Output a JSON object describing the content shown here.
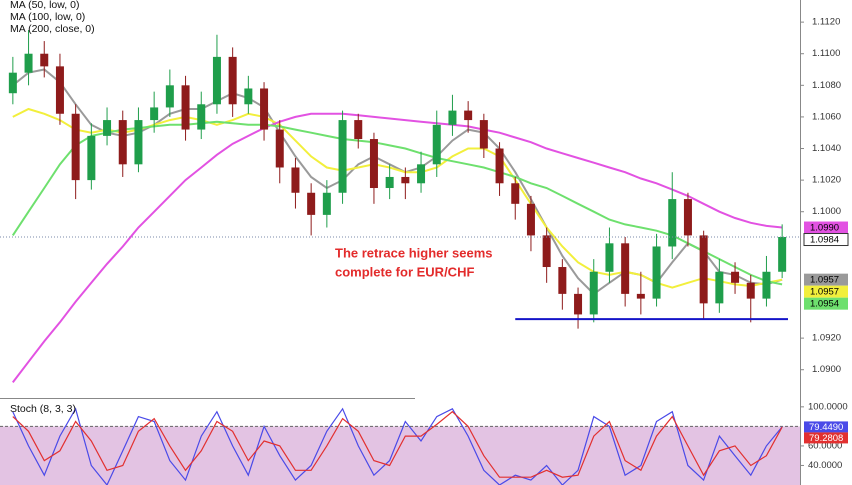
{
  "chart_data": [
    {
      "type": "candlestick",
      "legend": [
        "MA (50, low, 0)",
        "MA (100, low, 0)",
        "MA (200, close, 0)"
      ],
      "annotation_lines": [
        "The retrace higher seems",
        "complete for EUR/CHF"
      ],
      "up_color": "#1f9e4b",
      "down_color": "#8e1b1b",
      "open": [
        1.1075,
        1.1088,
        1.11,
        1.1092,
        1.1062,
        1.102,
        1.1048,
        1.1058,
        1.103,
        1.1058,
        1.1066,
        1.108,
        1.1052,
        1.1068,
        1.1098,
        1.1068,
        1.1078,
        1.1052,
        1.1028,
        1.1012,
        1.0998,
        1.1012,
        1.1058,
        1.1046,
        1.1015,
        1.1022,
        1.1018,
        1.103,
        1.1055,
        1.1064,
        1.1058,
        1.104,
        1.1018,
        1.1005,
        1.0985,
        1.0965,
        1.0948,
        1.0935,
        1.0962,
        1.098,
        1.0948,
        1.0945,
        1.0978,
        1.1008,
        1.0985,
        1.0942,
        1.0962,
        1.0955,
        1.0945,
        1.0962
      ],
      "high": [
        1.1098,
        1.1115,
        1.1108,
        1.11,
        1.1068,
        1.1056,
        1.1066,
        1.1064,
        1.1066,
        1.1076,
        1.109,
        1.1086,
        1.1076,
        1.1112,
        1.1104,
        1.1086,
        1.1082,
        1.1058,
        1.1034,
        1.1018,
        1.102,
        1.1064,
        1.1062,
        1.105,
        1.103,
        1.1028,
        1.1038,
        1.1064,
        1.1074,
        1.107,
        1.1062,
        1.1044,
        1.1022,
        1.101,
        1.099,
        1.097,
        1.0952,
        1.097,
        1.099,
        1.0984,
        1.0962,
        1.0986,
        1.1025,
        1.1012,
        1.0988,
        1.097,
        1.0968,
        1.096,
        1.0972,
        1.0992
      ],
      "low": [
        1.1068,
        1.108,
        1.1085,
        1.1055,
        1.1008,
        1.1014,
        1.1042,
        1.1022,
        1.1025,
        1.105,
        1.106,
        1.1045,
        1.1046,
        1.1062,
        1.106,
        1.1062,
        1.1045,
        1.1018,
        1.1002,
        1.0985,
        1.099,
        1.1005,
        1.104,
        1.1005,
        1.1008,
        1.1008,
        1.1012,
        1.1022,
        1.1048,
        1.105,
        1.1034,
        1.101,
        1.0995,
        1.0975,
        1.0955,
        1.0938,
        1.0926,
        1.093,
        1.0955,
        1.094,
        1.0935,
        1.094,
        1.097,
        1.0978,
        1.0932,
        1.0936,
        1.0948,
        1.093,
        1.094,
        1.0958
      ],
      "close": [
        1.1088,
        1.11,
        1.1092,
        1.1062,
        1.102,
        1.1048,
        1.1058,
        1.103,
        1.1058,
        1.1066,
        1.108,
        1.1052,
        1.1068,
        1.1098,
        1.1068,
        1.1078,
        1.1052,
        1.1028,
        1.1012,
        1.0998,
        1.1012,
        1.1058,
        1.1046,
        1.1015,
        1.1022,
        1.1018,
        1.103,
        1.1055,
        1.1064,
        1.1058,
        1.104,
        1.1018,
        1.1005,
        1.0985,
        1.0965,
        1.0948,
        1.0935,
        1.0962,
        1.098,
        1.0948,
        1.0945,
        1.0978,
        1.1008,
        1.0985,
        1.0942,
        1.0962,
        1.0955,
        1.0945,
        1.0962,
        1.0984
      ],
      "series": [
        {
          "color": "#9a9a9a",
          "values": [
            1.108,
            1.1088,
            1.109,
            1.1082,
            1.1068,
            1.1055,
            1.105,
            1.1048,
            1.105,
            1.1055,
            1.1062,
            1.1065,
            1.1065,
            1.107,
            1.1075,
            1.1072,
            1.1066,
            1.105,
            1.1035,
            1.1022,
            1.1015,
            1.102,
            1.103,
            1.1035,
            1.103,
            1.1025,
            1.1028,
            1.1035,
            1.1045,
            1.1052,
            1.105,
            1.104,
            1.1025,
            1.1008,
            1.099,
            1.0972,
            1.0958,
            1.0948,
            1.0955,
            1.0962,
            1.096,
            1.0955,
            1.0968,
            1.098,
            1.0975,
            1.0962,
            1.096,
            1.0955,
            1.0954,
            1.0957
          ]
        },
        {
          "color": "#f2ef3c",
          "values": [
            1.106,
            1.1065,
            1.1062,
            1.1058,
            1.1052,
            1.105,
            1.1052,
            1.105,
            1.1052,
            1.1055,
            1.1058,
            1.106,
            1.1058,
            1.1055,
            1.1058,
            1.1062,
            1.106,
            1.1055,
            1.1045,
            1.1035,
            1.1028,
            1.1026,
            1.1028,
            1.103,
            1.1028,
            1.1025,
            1.1025,
            1.1028,
            1.1035,
            1.104,
            1.104,
            1.1035,
            1.102,
            1.1005,
            1.099,
            1.0978,
            1.0968,
            1.0962,
            1.096,
            1.0962,
            1.096,
            1.0955,
            1.0952,
            1.0955,
            1.0958,
            1.0956,
            1.0954,
            1.0953,
            1.0955,
            1.0957
          ]
        },
        {
          "color": "#e252e2",
          "values": [
            1.0892,
            1.0905,
            1.0918,
            1.093,
            1.0943,
            1.0955,
            1.0967,
            1.0978,
            1.099,
            1.1,
            1.101,
            1.102,
            1.1028,
            1.1036,
            1.1043,
            1.1048,
            1.1053,
            1.1057,
            1.106,
            1.1062,
            1.1062,
            1.1062,
            1.1061,
            1.106,
            1.1059,
            1.1058,
            1.1057,
            1.1056,
            1.1055,
            1.1054,
            1.1052,
            1.105,
            1.1047,
            1.1044,
            1.104,
            1.1037,
            1.1034,
            1.1031,
            1.1028,
            1.1025,
            1.1021,
            1.1018,
            1.1014,
            1.101,
            1.1005,
            1.1,
            1.0996,
            1.0993,
            1.0991,
            1.099
          ]
        },
        {
          "color": "#6ee06e",
          "values": [
            1.0985,
            1.1,
            1.1015,
            1.103,
            1.1042,
            1.1048,
            1.105,
            1.1052,
            1.1053,
            1.1054,
            1.1055,
            1.1055,
            1.1056,
            1.1057,
            1.1056,
            1.1055,
            1.1055,
            1.1054,
            1.1052,
            1.105,
            1.1048,
            1.1046,
            1.1045,
            1.1044,
            1.1042,
            1.104,
            1.1037,
            1.1034,
            1.1032,
            1.103,
            1.1028,
            1.1025,
            1.1022,
            1.1018,
            1.1015,
            1.101,
            1.1005,
            1.1,
            1.0995,
            1.0992,
            1.099,
            1.0988,
            1.0985,
            1.098,
            1.0975,
            1.097,
            1.0965,
            1.096,
            1.0956,
            1.0954
          ]
        }
      ],
      "support_level": 1.0932,
      "support_color": "#1414c8",
      "price_labels": [
        {
          "value": 1.099,
          "label": "1.0990",
          "color": "#e252e2"
        },
        {
          "value": 1.0984,
          "label": "1.0984",
          "color": "#ffffff"
        },
        {
          "value": 1.0957,
          "label": "1.0957",
          "color": "#9a9a9a"
        },
        {
          "value": 1.0957,
          "label": "1.0957",
          "color": "#f2ef3c"
        },
        {
          "value": 1.0954,
          "label": "1.0954",
          "color": "#6ee06e"
        }
      ],
      "ylim": [
        1.0884,
        1.1134
      ],
      "yticks": [
        {
          "value": 1.09,
          "label": "1.0900"
        },
        {
          "value": 1.092,
          "label": "1.0920"
        },
        {
          "value": 1.1,
          "label": "1.1000"
        },
        {
          "value": 1.102,
          "label": "1.1020"
        },
        {
          "value": 1.104,
          "label": "1.1040"
        },
        {
          "value": 1.106,
          "label": "1.1060"
        },
        {
          "value": 1.108,
          "label": "1.1080"
        },
        {
          "value": 1.11,
          "label": "1.1100"
        },
        {
          "value": 1.112,
          "label": "1.1120"
        }
      ]
    },
    {
      "type": "line",
      "title": "Stoch (8, 3, 3)",
      "band": [
        20,
        80
      ],
      "band_color": "#dcb4dc",
      "series": [
        {
          "color": "#4a4ae8",
          "values": [
            95,
            60,
            30,
            70,
            98,
            40,
            20,
            55,
            90,
            85,
            45,
            25,
            70,
            95,
            60,
            30,
            80,
            50,
            25,
            40,
            75,
            98,
            60,
            30,
            45,
            85,
            65,
            90,
            98,
            70,
            35,
            20,
            30,
            25,
            40,
            20,
            35,
            90,
            80,
            30,
            40,
            85,
            95,
            40,
            25,
            70,
            50,
            30,
            60,
            79.449
          ]
        },
        {
          "color": "#e23030",
          "values": [
            90,
            75,
            45,
            55,
            85,
            65,
            35,
            40,
            75,
            88,
            60,
            35,
            55,
            85,
            75,
            45,
            65,
            60,
            35,
            35,
            60,
            88,
            75,
            45,
            40,
            70,
            70,
            82,
            95,
            80,
            50,
            28,
            28,
            28,
            35,
            28,
            30,
            70,
            85,
            45,
            35,
            70,
            90,
            60,
            30,
            55,
            60,
            40,
            50,
            79.2808
          ]
        }
      ],
      "value_labels": [
        {
          "value": 79.449,
          "label": "79.4490",
          "color": "#4a4ae8"
        },
        {
          "value": 79.2808,
          "label": "79.2808",
          "color": "#e23030"
        }
      ],
      "ylim": [
        20,
        107
      ],
      "yticks": [
        {
          "value": 100,
          "label": "100.0000"
        },
        {
          "value": 60,
          "label": "60.0000"
        },
        {
          "value": 40,
          "label": "40.0000"
        }
      ]
    }
  ]
}
